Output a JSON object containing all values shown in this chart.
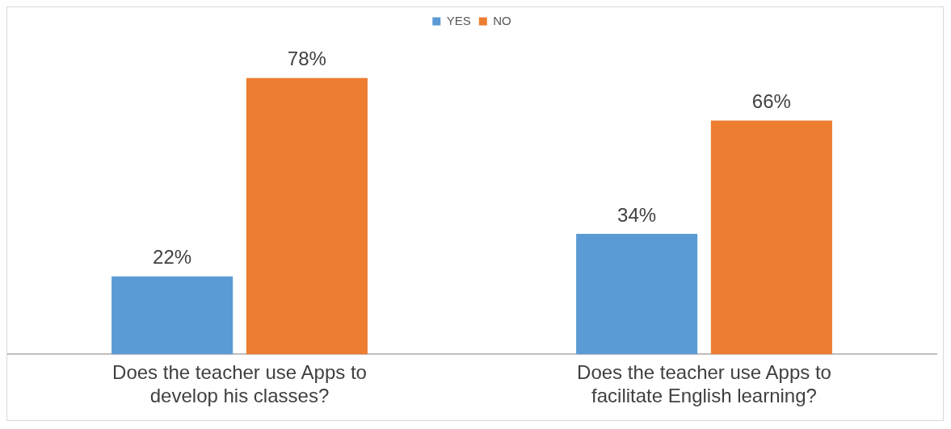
{
  "chart_data": {
    "type": "bar",
    "categories": [
      "Does the teacher use Apps to develop his classes?",
      "Does the teacher use Apps to facilitate English learning?"
    ],
    "series": [
      {
        "name": "YES",
        "color": "#5b9bd5",
        "values": [
          22,
          34
        ],
        "value_labels": [
          "22%",
          "34%"
        ]
      },
      {
        "name": "NO",
        "color": "#ed7d31",
        "values": [
          78,
          66
        ],
        "value_labels": [
          "78%",
          "66%"
        ]
      }
    ],
    "legend": "top",
    "grid": false
  }
}
